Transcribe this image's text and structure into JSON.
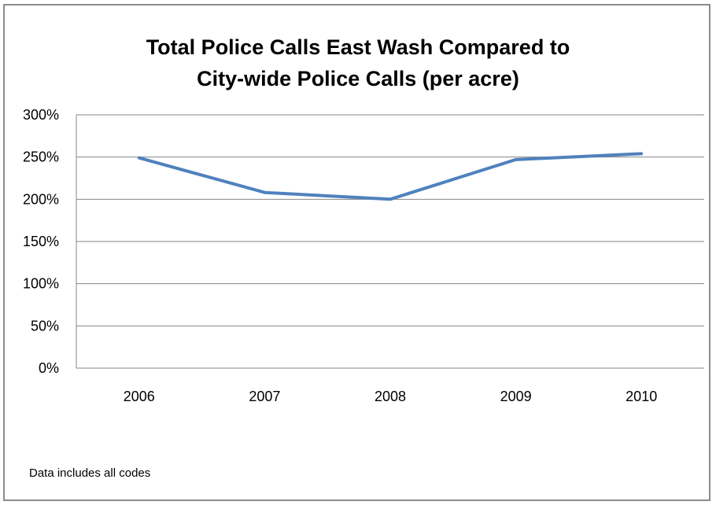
{
  "chart_data": {
    "type": "line",
    "title_lines": [
      "Total Police Calls East Wash Compared to",
      "City-wide Police Calls (per acre)"
    ],
    "xlabel": "",
    "ylabel": "",
    "categories": [
      "2006",
      "2007",
      "2008",
      "2009",
      "2010"
    ],
    "y_ticks": [
      "0%",
      "50%",
      "100%",
      "150%",
      "200%",
      "250%",
      "300%"
    ],
    "ylim": [
      0,
      300
    ],
    "grid": true,
    "legend": "none",
    "series": [
      {
        "values": [
          249,
          208,
          200,
          247,
          254
        ],
        "color": "#4f81bd"
      }
    ],
    "note": "Data includes all codes"
  }
}
